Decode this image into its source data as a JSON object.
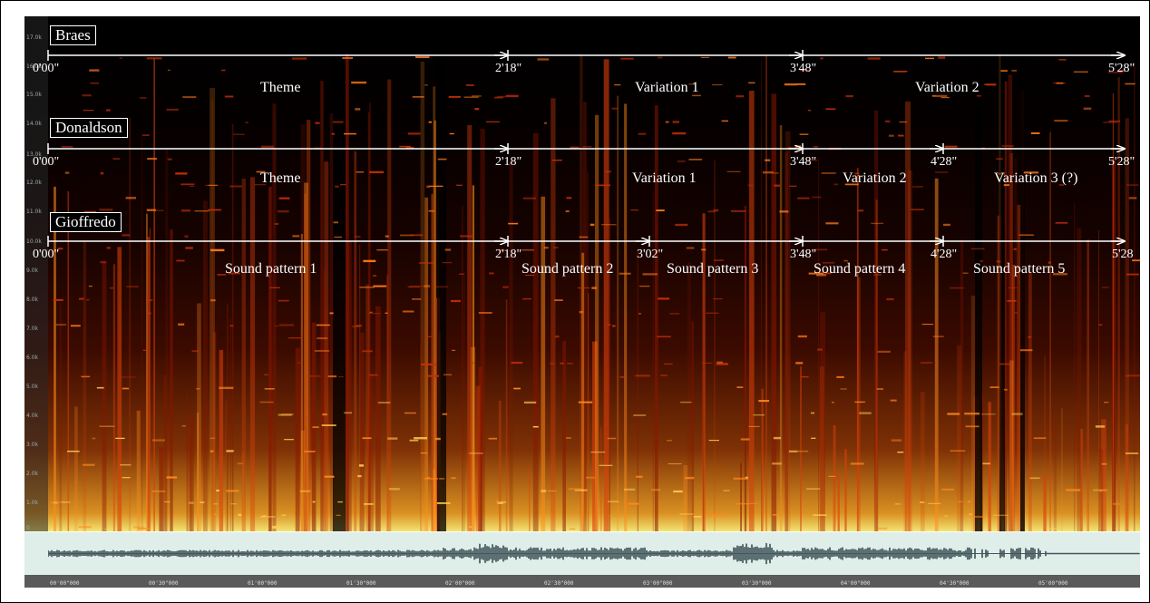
{
  "frequency_axis": {
    "ticks": [
      "17.0k",
      "16.0k",
      "15.0k",
      "14.0k",
      "13.0k",
      "12.0k",
      "11.0k",
      "10.0k",
      "9.0k",
      "8.0k",
      "7.0k",
      "6.0k",
      "5.0k",
      "4.0k",
      "3.0k",
      "2.0k",
      "1.0k",
      "0"
    ]
  },
  "timeline_ruler": {
    "ticks": [
      "00'00\"000",
      "00'30\"000",
      "01'00\"000",
      "01'30\"000",
      "02'00\"000",
      "02'30\"000",
      "03'00\"000",
      "03'30\"000",
      "04'00\"000",
      "04'30\"000",
      "05'00\"000"
    ]
  },
  "annotations": {
    "braes": {
      "label": "Braes",
      "times": [
        "0'00\"",
        "2'18\"",
        "3'48\"",
        "5'28\""
      ],
      "sections": [
        "Theme",
        "Variation 1",
        "Variation 2"
      ]
    },
    "donaldson": {
      "label": "Donaldson",
      "times": [
        "0'00\"",
        "2'18\"",
        "3'48\"",
        "4'28\"",
        "5'28\""
      ],
      "sections": [
        "Theme",
        "Variation 1",
        "Variation 2",
        "Variation 3 (?)"
      ]
    },
    "gioffredo": {
      "label": "Gioffredo",
      "times": [
        "0'00\"",
        "2'18\"",
        "3'02\"",
        "3'48\"",
        "4'28\"",
        "5'28"
      ],
      "sections": [
        "Sound pattern 1",
        "Sound pattern 2",
        "Sound pattern 3",
        "Sound pattern 4",
        "Sound pattern 5"
      ]
    }
  },
  "colors": {
    "spectrogram_background": "#000000",
    "waveform_background": "#dfeee8",
    "waveform_color": "#3c4f55",
    "annotation_color": "#ffffff"
  }
}
